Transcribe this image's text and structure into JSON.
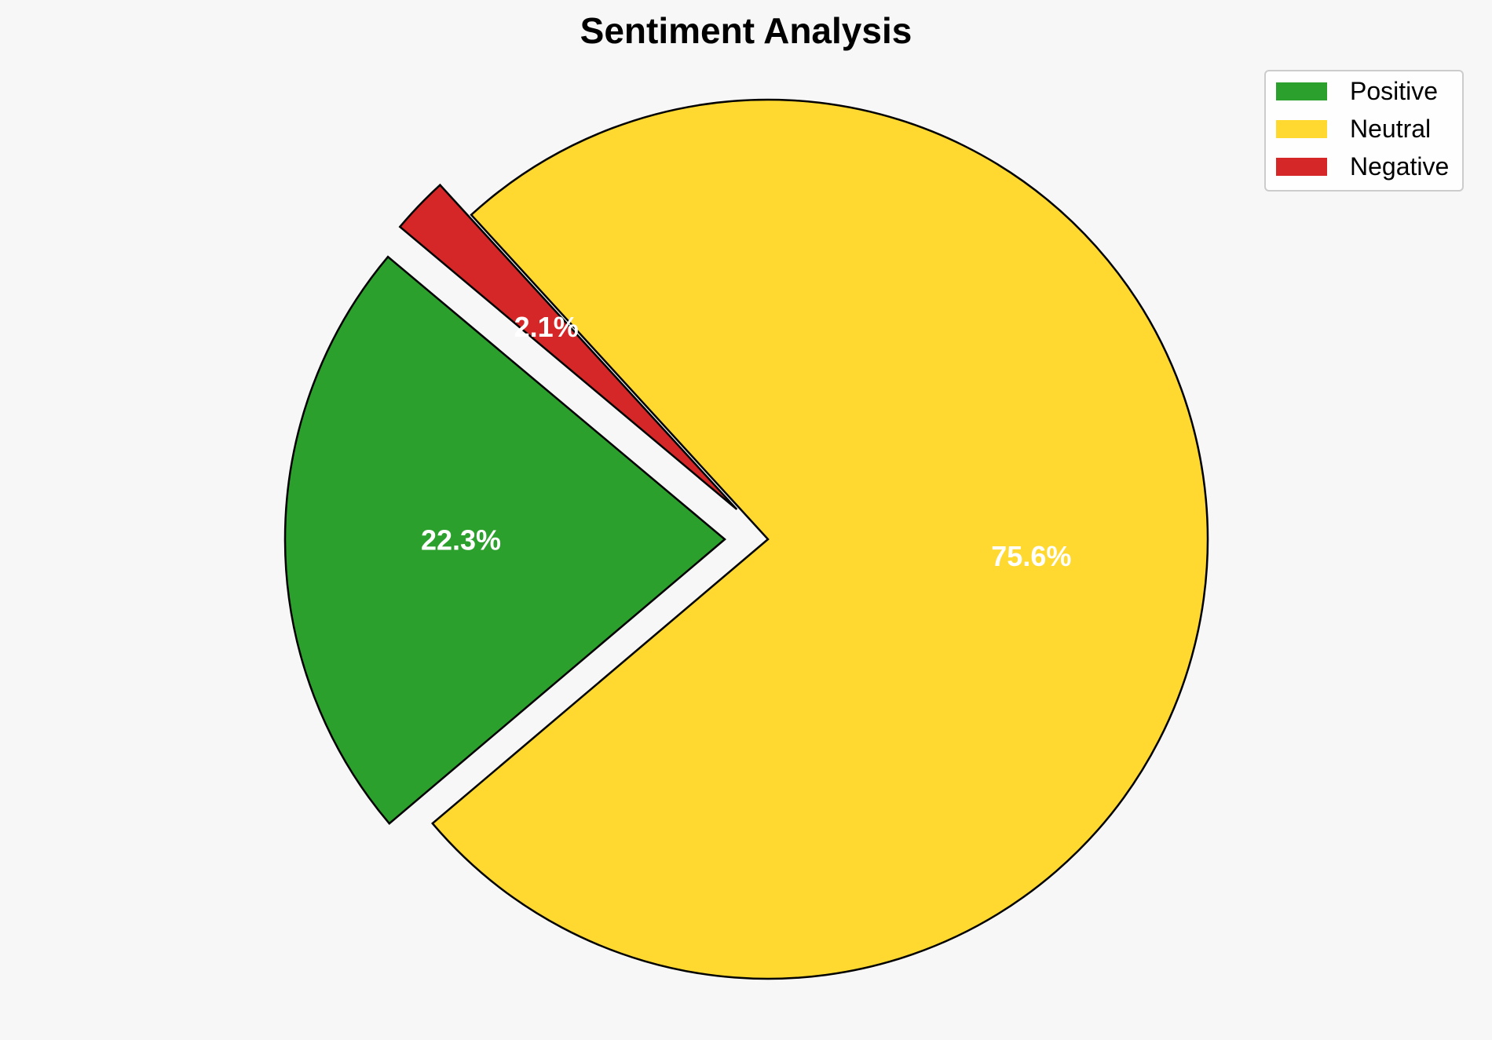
{
  "chart_data": {
    "type": "pie",
    "title": "Sentiment Analysis",
    "start_angle_deg": 140,
    "direction": "counterclockwise",
    "slices": [
      {
        "label": "Positive",
        "value": 22.3,
        "display": "22.3%",
        "color": "#2ca02c",
        "exploded": true
      },
      {
        "label": "Neutral",
        "value": 75.6,
        "display": "75.6%",
        "color": "#ffd92f",
        "exploded": false
      },
      {
        "label": "Negative",
        "value": 2.1,
        "display": "2.1%",
        "color": "#d62728",
        "exploded": true
      }
    ],
    "legend": {
      "position": "top-right",
      "entries": [
        "Positive",
        "Neutral",
        "Negative"
      ]
    },
    "edge_color": "#000000",
    "label_color": "#ffffff",
    "background": "#f7f7f7"
  }
}
